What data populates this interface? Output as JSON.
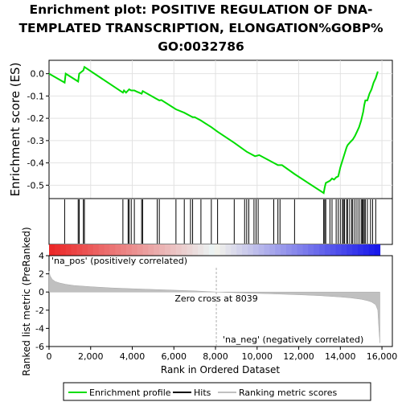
{
  "title_lines": [
    "Enrichment plot: POSITIVE REGULATION OF DNA-",
    "TEMPLATED TRANSCRIPTION, ELONGATION%GOBP%",
    "GO:0032786"
  ],
  "colors": {
    "enrichment": "#00dd00",
    "hits": "#000000",
    "metric_fill": "#c0c0c0",
    "pos_label": "#cc0000",
    "neg_label": "#0000cc",
    "zero_line": "#b0b0b0"
  },
  "chart_data": [
    {
      "type": "line",
      "name": "enrichment-plot",
      "ylabel": "Enrichment score (ES)",
      "xlim": [
        0,
        16500
      ],
      "ylim": [
        -0.56,
        0.06
      ],
      "yticks": [
        0.0,
        -0.1,
        -0.2,
        -0.3,
        -0.4,
        -0.5
      ],
      "ytick_labels": [
        "0.0",
        "-0.1",
        "-0.2",
        "-0.3",
        "-0.4",
        "-0.5"
      ],
      "grid": true,
      "x": [
        0,
        750,
        800,
        1400,
        1450,
        1650,
        1700,
        3550,
        3600,
        3700,
        3800,
        3850,
        3950,
        4100,
        4200,
        4450,
        4500,
        5200,
        5300,
        5400,
        6100,
        6500,
        6800,
        6900,
        7000,
        7300,
        7800,
        8100,
        8900,
        9500,
        9900,
        10100,
        11000,
        11200,
        11800,
        13200,
        13250,
        13300,
        13500,
        13600,
        13700,
        13800,
        13900,
        14000,
        14100,
        14200,
        14300,
        14350,
        14450,
        14600,
        14700,
        14800,
        14900,
        15000,
        15100,
        15150,
        15200,
        15300,
        15400,
        15500,
        15600,
        15700,
        15800
      ],
      "y": [
        0.0,
        -0.04,
        0.0,
        -0.035,
        0.0,
        0.015,
        0.03,
        -0.085,
        -0.075,
        -0.085,
        -0.075,
        -0.07,
        -0.075,
        -0.075,
        -0.08,
        -0.09,
        -0.078,
        -0.115,
        -0.12,
        -0.118,
        -0.16,
        -0.175,
        -0.19,
        -0.195,
        -0.195,
        -0.21,
        -0.24,
        -0.26,
        -0.31,
        -0.35,
        -0.37,
        -0.365,
        -0.41,
        -0.41,
        -0.45,
        -0.535,
        -0.51,
        -0.49,
        -0.48,
        -0.47,
        -0.475,
        -0.465,
        -0.46,
        -0.42,
        -0.39,
        -0.36,
        -0.33,
        -0.32,
        -0.31,
        -0.295,
        -0.28,
        -0.26,
        -0.24,
        -0.21,
        -0.17,
        -0.14,
        -0.12,
        -0.12,
        -0.09,
        -0.07,
        -0.04,
        -0.02,
        0.01
      ]
    },
    {
      "type": "scatter",
      "name": "hits",
      "xlim": [
        0,
        16500
      ],
      "x": [
        750,
        1400,
        1450,
        1650,
        1700,
        3550,
        3800,
        3850,
        3950,
        4100,
        4450,
        4500,
        5200,
        5300,
        6100,
        6500,
        6800,
        6900,
        7300,
        7800,
        8100,
        8900,
        9400,
        9500,
        9600,
        9850,
        9950,
        10050,
        10800,
        11000,
        11100,
        11800,
        13200,
        13250,
        13300,
        13500,
        13600,
        13800,
        13900,
        14000,
        14100,
        14150,
        14200,
        14300,
        14350,
        14450,
        14550,
        14600,
        14700,
        14800,
        14900,
        15000,
        15050,
        15100,
        15150,
        15200,
        15300,
        15450,
        15550,
        15700
      ]
    },
    {
      "type": "area",
      "name": "ranked-list-metric",
      "xlabel": "Rank in Ordered Dataset",
      "ylabel": "Ranked list metric (PreRanked)",
      "xlim": [
        0,
        16500
      ],
      "ylim": [
        -6,
        4
      ],
      "xticks": [
        0,
        2000,
        4000,
        6000,
        8000,
        10000,
        12000,
        14000,
        16000
      ],
      "xtick_labels": [
        "0",
        "2,000",
        "4,000",
        "6,000",
        "8,000",
        "10,000",
        "12,000",
        "14,000",
        "16,000"
      ],
      "yticks": [
        4,
        2,
        0,
        -2,
        -4,
        -6
      ],
      "ytick_labels": [
        "4",
        "2",
        "0",
        "-2",
        "-4",
        "-6"
      ],
      "x": [
        0,
        50,
        150,
        300,
        500,
        800,
        1200,
        2000,
        3000,
        4000,
        5000,
        6000,
        7000,
        8039,
        9000,
        10000,
        11000,
        12000,
        13000,
        14000,
        14500,
        15000,
        15300,
        15500,
        15700,
        15800,
        15850,
        15900
      ],
      "y": [
        2.3,
        1.8,
        1.4,
        1.15,
        1.0,
        0.85,
        0.72,
        0.58,
        0.45,
        0.36,
        0.28,
        0.2,
        0.12,
        0.0,
        -0.08,
        -0.15,
        -0.22,
        -0.3,
        -0.4,
        -0.55,
        -0.65,
        -0.8,
        -0.95,
        -1.1,
        -1.4,
        -2.0,
        -4.0,
        -5.6
      ],
      "zero_cross_label": "Zero cross at 8039",
      "zero_cross_x": 8039,
      "pos_label": "'na_pos' (positively correlated)",
      "neg_label": "'na_neg' (negatively correlated)"
    }
  ],
  "legend": {
    "placement": "bottom",
    "items": [
      {
        "label": "Enrichment profile",
        "color": "#00dd00"
      },
      {
        "label": "Hits",
        "color": "#000000"
      },
      {
        "label": "Ranking metric scores",
        "color": "#c0c0c0"
      }
    ]
  }
}
